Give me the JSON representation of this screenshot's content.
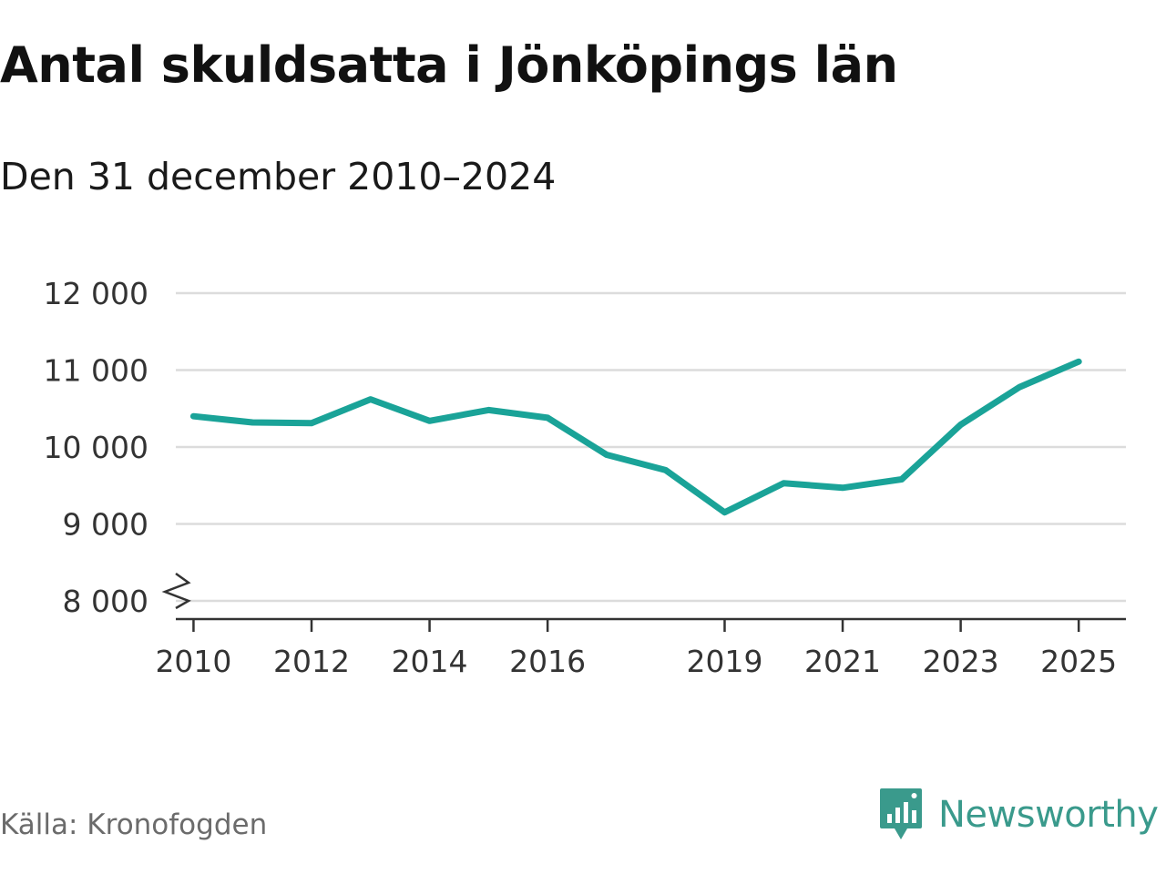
{
  "header": {
    "title": "Antal skuldsatta i Jönköpings län",
    "subtitle": "Den 31 december 2010–2024"
  },
  "footer": {
    "source": "Källa: Kronofogden",
    "brand": "Newsworthy"
  },
  "colors": {
    "line": "#1aa398",
    "grid": "#dcdcdc",
    "axis": "#333333",
    "brand": "#3a9a8c"
  },
  "chart_data": {
    "type": "line",
    "title": "Antal skuldsatta i Jönköpings län",
    "subtitle": "Den 31 december 2010–2024",
    "xlabel": "",
    "ylabel": "",
    "xlim": [
      2009.7,
      2025.8
    ],
    "ylim": [
      7800,
      12000
    ],
    "y_break_below": 9000,
    "grid": "horizontal",
    "x_ticks": [
      2010,
      2012,
      2014,
      2016,
      2019,
      2021,
      2023,
      2025
    ],
    "x_tick_labels": [
      "2010",
      "2012",
      "2014",
      "2016",
      "2019",
      "2021",
      "2023",
      "2025"
    ],
    "y_ticks": [
      8000,
      9000,
      10000,
      11000,
      12000
    ],
    "y_tick_labels": [
      "8 000",
      "9 000",
      "10 000",
      "11 000",
      "12 000"
    ],
    "series": [
      {
        "name": "Antal skuldsatta",
        "x": [
          2010,
          2011,
          2012,
          2013,
          2014,
          2015,
          2016,
          2017,
          2018,
          2019,
          2020,
          2021,
          2022,
          2023,
          2024,
          2025
        ],
        "values": [
          10400,
          10320,
          10310,
          10620,
          10340,
          10480,
          10380,
          9900,
          9700,
          9150,
          9530,
          9470,
          9580,
          10290,
          10780,
          11110
        ]
      }
    ]
  }
}
